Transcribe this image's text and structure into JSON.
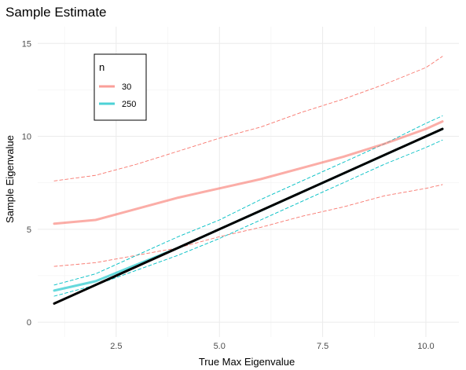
{
  "chart_data": {
    "type": "line",
    "title": "Sample Estimate",
    "xlabel": "True Max Eigenvalue",
    "ylabel": "Sample Eigenvalue",
    "xlim": [
      0.6,
      10.8
    ],
    "ylim": [
      -0.8,
      15.9
    ],
    "xticks": [
      2.5,
      5.0,
      7.5,
      10.0
    ],
    "xtick_labels": [
      "2.5",
      "5.0",
      "7.5",
      "10.0"
    ],
    "yticks": [
      0,
      5,
      10,
      15
    ],
    "ytick_labels": [
      "0",
      "5",
      "10",
      "15"
    ],
    "grid": true,
    "legend": {
      "title": "n",
      "placement": "top-left",
      "entries": [
        {
          "label": "30",
          "color": "#F8766D"
        },
        {
          "label": "250",
          "color": "#00BFC4"
        }
      ]
    },
    "series": [
      {
        "name": "30",
        "color": "#F8766D",
        "style": "solid",
        "x": [
          1.0,
          2.0,
          2.5,
          3.0,
          4.0,
          5.0,
          6.0,
          7.0,
          8.0,
          9.0,
          10.0,
          10.4
        ],
        "values": [
          5.3,
          5.5,
          5.8,
          6.1,
          6.7,
          7.2,
          7.7,
          8.3,
          8.9,
          9.6,
          10.4,
          10.8
        ]
      },
      {
        "name": "30 upper",
        "color": "#F8766D",
        "style": "dashed",
        "x": [
          1.0,
          2.0,
          3.0,
          4.0,
          5.0,
          6.0,
          7.0,
          8.0,
          9.0,
          10.0,
          10.4
        ],
        "values": [
          7.6,
          7.9,
          8.5,
          9.2,
          9.9,
          10.5,
          11.3,
          12.0,
          12.8,
          13.7,
          14.3
        ]
      },
      {
        "name": "30 lower",
        "color": "#F8766D",
        "style": "dashed",
        "x": [
          1.0,
          2.0,
          3.0,
          4.0,
          5.0,
          6.0,
          7.0,
          8.0,
          9.0,
          10.0,
          10.4
        ],
        "values": [
          3.0,
          3.2,
          3.6,
          4.0,
          4.6,
          5.1,
          5.7,
          6.2,
          6.8,
          7.2,
          7.4
        ]
      },
      {
        "name": "250",
        "color": "#00BFC4",
        "style": "solid",
        "x": [
          1.0,
          2.0,
          3.0,
          4.0,
          5.0,
          6.0,
          7.0,
          8.0,
          9.0,
          10.0,
          10.4
        ],
        "values": [
          1.7,
          2.2,
          3.1,
          4.0,
          5.0,
          6.0,
          7.0,
          8.0,
          9.0,
          10.0,
          10.4
        ]
      },
      {
        "name": "250 upper",
        "color": "#00BFC4",
        "style": "dashed",
        "x": [
          1.0,
          2.0,
          3.0,
          4.0,
          5.0,
          6.0,
          7.0,
          8.0,
          9.0,
          10.0,
          10.4
        ],
        "values": [
          2.0,
          2.6,
          3.6,
          4.6,
          5.5,
          6.6,
          7.6,
          8.6,
          9.6,
          10.7,
          11.1
        ]
      },
      {
        "name": "250 lower",
        "color": "#00BFC4",
        "style": "dashed",
        "x": [
          1.0,
          2.0,
          3.0,
          4.0,
          5.0,
          6.0,
          7.0,
          8.0,
          9.0,
          10.0,
          10.4
        ],
        "values": [
          1.4,
          2.0,
          2.8,
          3.6,
          4.5,
          5.5,
          6.5,
          7.5,
          8.5,
          9.4,
          9.8
        ]
      },
      {
        "name": "True",
        "color": "#000000",
        "style": "solid",
        "x": [
          1.0,
          10.4
        ],
        "values": [
          1.0,
          10.4
        ]
      }
    ]
  }
}
